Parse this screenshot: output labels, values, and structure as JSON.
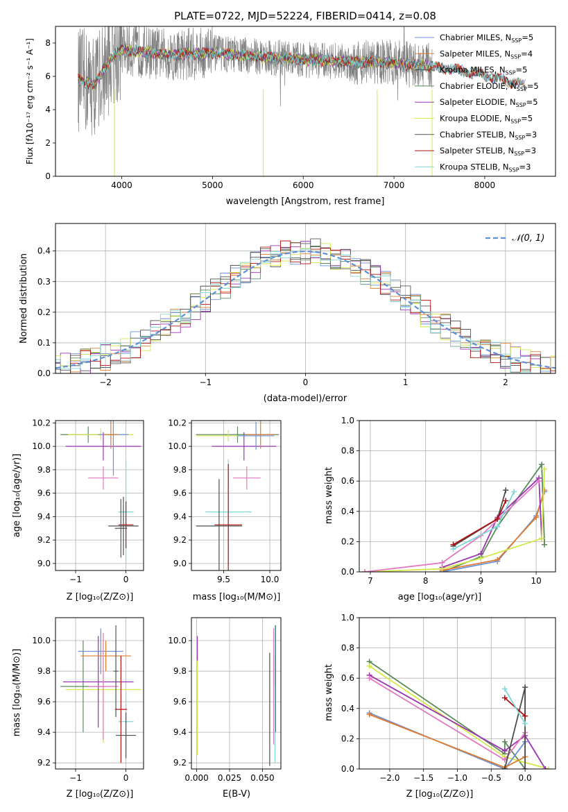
{
  "figure": {
    "title": "PLATE=0722, MJD=52224, FIBERID=0414, z=0.08"
  },
  "chart_data": [
    {
      "type": "line",
      "id": "spectrum",
      "title": "PLATE=0722, MJD=52224, FIBERID=0414, z=0.08",
      "xlabel": "wavelength [Angstrom, rest frame]",
      "ylabel": "Flux [fλ10⁻¹⁷ erg cm⁻² s⁻¹ A⁻¹]",
      "xlim": [
        3270,
        8780
      ],
      "ylim": [
        0,
        9
      ],
      "xticks": [
        4000,
        5000,
        6000,
        7000,
        8000
      ],
      "yticks": [
        0,
        2,
        4,
        6,
        8
      ],
      "legend_placement": "right",
      "legend": [
        {
          "label": "Chabrier MILES, N_SSP=5",
          "color": "#6b8fd8"
        },
        {
          "label": "Salpeter MILES, N_SSP=4",
          "color": "#e07b2c"
        },
        {
          "label": "Kroupa MILES, N_SSP=5",
          "color": "#4d4d4d"
        },
        {
          "label": "Chabrier ELODIE, N_SSP=5",
          "color": "#5a8a5a"
        },
        {
          "label": "Salpeter ELODIE, N_SSP=5",
          "color": "#9b32b0"
        },
        {
          "label": "Kroupa ELODIE, N_SSP=5",
          "color": "#d4e84a"
        },
        {
          "label": "Chabrier STELIB, N_SSP=3",
          "color": "#555555"
        },
        {
          "label": "Salpeter STELIB, N_SSP=3",
          "color": "#b01010"
        },
        {
          "label": "Kroupa STELIB, N_SSP=3",
          "color": "#7fd8d8"
        }
      ],
      "data_color": "#808080",
      "continuum": [
        {
          "x": 3520,
          "y": 5.8
        },
        {
          "x": 3700,
          "y": 5.5
        },
        {
          "x": 3900,
          "y": 7.2
        },
        {
          "x": 4000,
          "y": 7.6
        },
        {
          "x": 4200,
          "y": 7.5
        },
        {
          "x": 4500,
          "y": 7.3
        },
        {
          "x": 5000,
          "y": 7.4
        },
        {
          "x": 5500,
          "y": 7.2
        },
        {
          "x": 6000,
          "y": 7.0
        },
        {
          "x": 6500,
          "y": 6.9
        },
        {
          "x": 7000,
          "y": 6.8
        },
        {
          "x": 7400,
          "y": 6.6
        },
        {
          "x": 7800,
          "y": 6.3
        },
        {
          "x": 8200,
          "y": 5.8
        },
        {
          "x": 8500,
          "y": 5.4
        }
      ]
    },
    {
      "type": "line",
      "id": "residuals",
      "xlabel": "(data-model)/error",
      "ylabel": "Normed distribution",
      "xlim": [
        -2.5,
        2.5
      ],
      "ylim": [
        0,
        0.49
      ],
      "xticks": [
        -2,
        -1,
        0,
        1,
        2
      ],
      "yticks": [
        0.0,
        0.1,
        0.2,
        0.3,
        0.4
      ],
      "legend_placement": "top-right",
      "legend": [
        {
          "label": "𝒩(0, 1)",
          "color": "#5b8fd8",
          "style": "dashed"
        }
      ],
      "gaussian": {
        "mean": 0,
        "sigma": 1
      },
      "bin_width": 0.1
    },
    {
      "type": "scatter",
      "id": "age-vs-Z",
      "xlabel": "Z [log₁₀(Z/Z⊙)]",
      "ylabel": "age  [log₁₀(age/yr)]",
      "xlim": [
        -1.4,
        0.35
      ],
      "ylim": [
        8.94,
        10.22
      ],
      "xticks": [
        -1,
        0
      ],
      "yticks": [
        9.0,
        9.2,
        9.4,
        9.6,
        9.8,
        10.0,
        10.2
      ],
      "points": [
        {
          "x": -0.75,
          "y": 10.1,
          "xerr": 0.55,
          "yerr": 0.07,
          "color": "#5a8a5a"
        },
        {
          "x": -0.5,
          "y": 10.1,
          "xerr": 0.65,
          "yerr": 0.05,
          "color": "#d4e84a"
        },
        {
          "x": -0.45,
          "y": 10.0,
          "xerr": 0.75,
          "yerr": 0.12,
          "color": "#9b32b0"
        },
        {
          "x": -0.25,
          "y": 10.1,
          "xerr": 0.3,
          "yerr": 0.35,
          "color": "#6b8fd8"
        },
        {
          "x": -0.3,
          "y": 10.1,
          "xerr": 0.15,
          "yerr": 0.12,
          "color": "#e07b2c"
        },
        {
          "x": -0.45,
          "y": 9.73,
          "xerr": 0.3,
          "yerr": 0.1,
          "color": "#e377c2"
        },
        {
          "x": 0.0,
          "y": 9.44,
          "xerr": 0.15,
          "yerr": 0.45,
          "color": "#7fd8d8"
        },
        {
          "x": 0.0,
          "y": 9.33,
          "xerr": 0.15,
          "yerr": 0.2,
          "color": "#b01010"
        },
        {
          "x": -0.05,
          "y": 9.32,
          "xerr": 0.3,
          "yerr": 0.25,
          "color": "#4d4d4d"
        },
        {
          "x": -0.1,
          "y": 9.3,
          "xerr": 0.12,
          "yerr": 0.25,
          "color": "#555555"
        }
      ]
    },
    {
      "type": "scatter",
      "id": "age-vs-mass",
      "xlabel": "mass [log₁₀(M/M⊙)]",
      "xlim": [
        9.15,
        10.12
      ],
      "ylim": [
        8.94,
        10.22
      ],
      "xticks": [
        9.5,
        10.0
      ],
      "yticks": [
        9.0,
        9.2,
        9.4,
        9.6,
        9.8,
        10.0,
        10.2
      ],
      "points": [
        {
          "x": 9.65,
          "y": 10.1,
          "xerr": 0.45,
          "yerr": 0.07,
          "color": "#5a8a5a"
        },
        {
          "x": 9.55,
          "y": 10.09,
          "xerr": 0.35,
          "yerr": 0.05,
          "color": "#d4e84a"
        },
        {
          "x": 9.72,
          "y": 10.0,
          "xerr": 0.35,
          "yerr": 0.12,
          "color": "#9b32b0"
        },
        {
          "x": 9.9,
          "y": 10.1,
          "xerr": 0.15,
          "yerr": 0.12,
          "color": "#e07b2c"
        },
        {
          "x": 9.85,
          "y": 10.09,
          "xerr": 0.2,
          "yerr": 0.12,
          "color": "#6b8fd8"
        },
        {
          "x": 9.75,
          "y": 9.73,
          "xerr": 0.15,
          "yerr": 0.1,
          "color": "#e377c2"
        },
        {
          "x": 9.55,
          "y": 9.44,
          "xerr": 0.25,
          "yerr": 0.45,
          "color": "#7fd8d8"
        },
        {
          "x": 9.55,
          "y": 9.33,
          "xerr": 0.15,
          "yerr": 0.52,
          "color": "#b01010"
        },
        {
          "x": 9.45,
          "y": 9.32,
          "xerr": 0.25,
          "yerr": 0.4,
          "color": "#4d4d4d"
        }
      ]
    },
    {
      "type": "line",
      "id": "weight-vs-age",
      "xlabel": "age  [log₁₀(age/yr)]",
      "ylabel": "mass weight",
      "xlim": [
        6.8,
        10.35
      ],
      "ylim": [
        0,
        1
      ],
      "xticks": [
        7,
        8,
        9,
        10
      ],
      "yticks": [
        0.0,
        0.2,
        0.4,
        0.6,
        0.8,
        1.0
      ],
      "series": [
        {
          "color": "#5a8a5a",
          "values": [
            [
              8.3,
              0.0
            ],
            [
              9.0,
              0.1
            ],
            [
              9.3,
              0.3
            ],
            [
              10.1,
              0.71
            ],
            [
              10.15,
              0.18
            ]
          ]
        },
        {
          "color": "#6b8fd8",
          "values": [
            [
              8.3,
              0.0
            ],
            [
              9.3,
              0.07
            ],
            [
              10.0,
              0.37
            ],
            [
              10.15,
              0.53
            ]
          ]
        },
        {
          "color": "#e07b2c",
          "values": [
            [
              8.3,
              0.01
            ],
            [
              9.3,
              0.08
            ],
            [
              10.0,
              0.36
            ],
            [
              10.15,
              0.54
            ]
          ]
        },
        {
          "color": "#9b32b0",
          "values": [
            [
              8.3,
              0.03
            ],
            [
              9.0,
              0.12
            ],
            [
              9.3,
              0.36
            ],
            [
              10.05,
              0.62
            ],
            [
              10.1,
              0.22
            ]
          ]
        },
        {
          "color": "#d4e84a",
          "values": [
            [
              6.9,
              0.0
            ],
            [
              8.3,
              0.02
            ],
            [
              9.0,
              0.09
            ],
            [
              10.1,
              0.22
            ],
            [
              10.15,
              0.68
            ]
          ]
        },
        {
          "color": "#e377c2",
          "values": [
            [
              6.9,
              0.0
            ],
            [
              8.3,
              0.06
            ],
            [
              9.0,
              0.24
            ],
            [
              10.05,
              0.6
            ]
          ]
        },
        {
          "color": "#4d4d4d",
          "values": [
            [
              8.5,
              0.17
            ],
            [
              9.3,
              0.35
            ],
            [
              9.45,
              0.54
            ]
          ]
        },
        {
          "color": "#b01010",
          "values": [
            [
              8.5,
              0.18
            ],
            [
              9.3,
              0.35
            ],
            [
              9.45,
              0.47
            ]
          ]
        },
        {
          "color": "#7fd8d8",
          "values": [
            [
              8.5,
              0.15
            ],
            [
              9.3,
              0.3
            ],
            [
              9.6,
              0.53
            ]
          ]
        }
      ]
    },
    {
      "type": "scatter",
      "id": "mass-vs-Z",
      "xlabel": "Z [log₁₀(Z/Z⊙)]",
      "ylabel": "mass [log₁₀(M/M⊙)]",
      "xlim": [
        -1.4,
        0.35
      ],
      "ylim": [
        9.16,
        10.15
      ],
      "xticks": [
        -1,
        0
      ],
      "yticks": [
        9.2,
        9.4,
        9.6,
        9.8,
        10.0
      ],
      "points": [
        {
          "x": -0.85,
          "y": 9.7,
          "xerr": 0.45,
          "yerr": 0.3,
          "color": "#5a8a5a"
        },
        {
          "x": -0.45,
          "y": 9.68,
          "xerr": 0.75,
          "yerr": 0.35,
          "color": "#d4e84a"
        },
        {
          "x": -0.55,
          "y": 9.73,
          "xerr": 0.7,
          "yerr": 0.3,
          "color": "#9b32b0"
        },
        {
          "x": -0.5,
          "y": 9.93,
          "xerr": 0.45,
          "yerr": 0.15,
          "color": "#6b8fd8"
        },
        {
          "x": -0.4,
          "y": 9.9,
          "xerr": 0.5,
          "yerr": 0.1,
          "color": "#e07b2c"
        },
        {
          "x": -0.45,
          "y": 9.7,
          "xerr": 0.3,
          "yerr": 0.35,
          "color": "#e377c2"
        },
        {
          "x": 0.0,
          "y": 9.47,
          "xerr": 0.15,
          "yerr": 0.2,
          "color": "#7fd8d8"
        },
        {
          "x": -0.1,
          "y": 9.55,
          "xerr": 0.12,
          "yerr": 0.35,
          "color": "#b01010"
        },
        {
          "x": 0.0,
          "y": 9.38,
          "xerr": 0.2,
          "yerr": 0.15,
          "color": "#4d4d4d"
        },
        {
          "x": -0.2,
          "y": 9.8,
          "xerr": 0.05,
          "yerr": 0.3,
          "color": "#555555"
        }
      ]
    },
    {
      "type": "scatter",
      "id": "mass-vs-EBV",
      "xlabel": "E(B-V)",
      "xlim": [
        -0.004,
        0.064
      ],
      "ylim": [
        9.16,
        10.15
      ],
      "xticks": [
        0.0,
        0.025,
        0.05
      ],
      "yticks": [
        9.2,
        9.4,
        9.6,
        9.8,
        10.0
      ],
      "points": [
        {
          "x": 0.0005,
          "y": 9.6,
          "yerr": 0.35,
          "color": "#d4e84a"
        },
        {
          "x": 0.0005,
          "y": 9.95,
          "yerr": 0.08,
          "color": "#9b32b0"
        },
        {
          "x": 0.0555,
          "y": 9.55,
          "yerr": 0.37,
          "color": "#4d4d4d"
        },
        {
          "x": 0.0585,
          "y": 9.7,
          "yerr": 0.38,
          "color": "#e377c2"
        },
        {
          "x": 0.0595,
          "y": 9.65,
          "yerr": 0.45,
          "color": "#7fd8d8"
        },
        {
          "x": 0.06,
          "y": 9.8,
          "yerr": 0.1,
          "color": "#b01010"
        },
        {
          "x": 0.06,
          "y": 9.75,
          "yerr": 0.35,
          "color": "#5a8a5a"
        }
      ]
    },
    {
      "type": "line",
      "id": "weight-vs-Z",
      "xlabel": "Z [log₁₀(Z/Z⊙)]",
      "ylabel": "mass weight",
      "xlim": [
        -2.45,
        0.45
      ],
      "ylim": [
        0,
        1
      ],
      "xticks": [
        -2.0,
        -1.5,
        -1.0,
        -0.5,
        0.0
      ],
      "yticks": [
        0.0,
        0.2,
        0.4,
        0.6,
        0.8,
        1.0
      ],
      "series": [
        {
          "color": "#5a8a5a",
          "values": [
            [
              -2.3,
              0.71
            ],
            [
              -0.3,
              0.1
            ],
            [
              -0.3,
              0.18
            ],
            [
              0.0,
              0.0
            ]
          ]
        },
        {
          "color": "#d4e84a",
          "values": [
            [
              -2.3,
              0.68
            ],
            [
              -0.3,
              0.08
            ],
            [
              0.35,
              0.0
            ]
          ]
        },
        {
          "color": "#9b32b0",
          "values": [
            [
              -2.3,
              0.62
            ],
            [
              -0.3,
              0.12
            ],
            [
              0.0,
              0.22
            ],
            [
              0.3,
              0.0
            ]
          ]
        },
        {
          "color": "#e377c2",
          "values": [
            [
              -2.3,
              0.6
            ],
            [
              -0.3,
              0.06
            ],
            [
              0.0,
              0.24
            ]
          ]
        },
        {
          "color": "#6b8fd8",
          "values": [
            [
              -2.3,
              0.37
            ],
            [
              -0.3,
              0.0
            ],
            [
              0.0,
              0.18
            ]
          ]
        },
        {
          "color": "#e07b2c",
          "values": [
            [
              -2.3,
              0.36
            ],
            [
              -0.3,
              0.01
            ],
            [
              0.0,
              0.08
            ],
            [
              0.0,
              0.54
            ]
          ]
        },
        {
          "color": "#4d4d4d",
          "values": [
            [
              -0.3,
              0.0
            ],
            [
              0.0,
              0.54
            ],
            [
              0.0,
              0.0
            ]
          ]
        },
        {
          "color": "#b01010",
          "values": [
            [
              -0.3,
              0.47
            ],
            [
              0.0,
              0.35
            ]
          ]
        },
        {
          "color": "#7fd8d8",
          "values": [
            [
              -0.3,
              0.53
            ],
            [
              0.0,
              0.3
            ]
          ]
        }
      ]
    }
  ]
}
